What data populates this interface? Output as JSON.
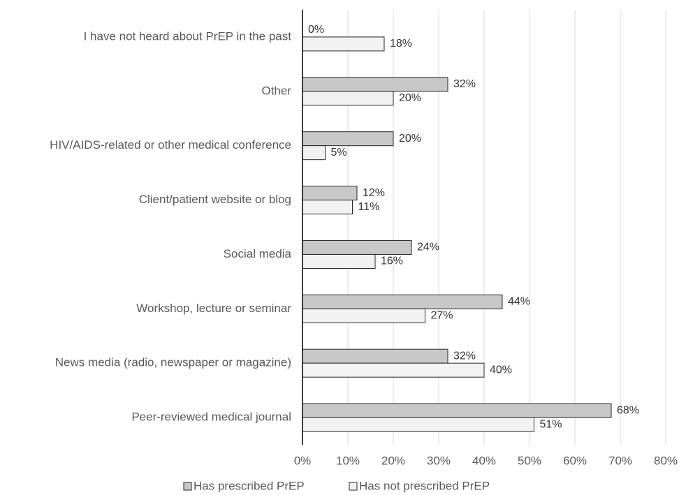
{
  "chart_data": {
    "type": "bar",
    "orientation": "horizontal",
    "categories": [
      "I have not heard about PrEP in the past",
      "Other",
      "HIV/AIDS-related or other medical conference",
      "Client/patient website or blog",
      "Social media",
      "Workshop, lecture or seminar",
      "News media (radio, newspaper or magazine)",
      "Peer-reviewed medical journal"
    ],
    "series": [
      {
        "name": "Has prescribed PrEP",
        "color": "#c8c8c8",
        "values": [
          0,
          32,
          20,
          12,
          24,
          44,
          32,
          68
        ],
        "value_labels": [
          "0%",
          "32%",
          "20%",
          "12%",
          "24%",
          "44%",
          "32%",
          "68%"
        ]
      },
      {
        "name": "Has not prescribed PrEP",
        "color": "#f2f2f2",
        "values": [
          18,
          20,
          5,
          11,
          16,
          27,
          40,
          51
        ],
        "value_labels": [
          "18%",
          "20%",
          "5%",
          "11%",
          "16%",
          "27%",
          "40%",
          "51%"
        ]
      }
    ],
    "xlim": [
      0,
      80
    ],
    "xticks": [
      {
        "value": 0,
        "label": "0%"
      },
      {
        "value": 10,
        "label": "10%"
      },
      {
        "value": 20,
        "label": "20%"
      },
      {
        "value": 30,
        "label": "30%"
      },
      {
        "value": 40,
        "label": "40%"
      },
      {
        "value": 50,
        "label": "50%"
      },
      {
        "value": 60,
        "label": "60%"
      },
      {
        "value": 70,
        "label": "70%"
      },
      {
        "value": 80,
        "label": "80%"
      }
    ],
    "grid": true,
    "legend": "bottom"
  }
}
